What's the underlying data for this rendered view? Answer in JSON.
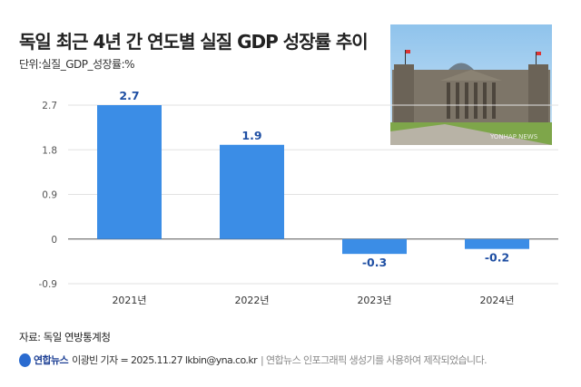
{
  "title": "독일 최근 4년 간 연도별 실질 GDP 성장률 추이",
  "unit": "단위:실질_GDP_성장률:%",
  "photo_watermark": "YONHAP NEWS",
  "source": "자료: 독일 연방통계청",
  "credit": {
    "logo_text": "연합뉴스",
    "byline": "이광빈 기자 = 2025.11.27 lkbin@yna.co.kr",
    "note": "| 연합뉴스 인포그래픽 생성기를 사용하여 제작되었습니다."
  },
  "chart_data": {
    "type": "bar",
    "title": "독일 최근 4년 간 연도별 실질 GDP 성장률 추이",
    "ylabel": "단위:실질_GDP_성장률:%",
    "categories": [
      "2021년",
      "2022년",
      "2023년",
      "2024년"
    ],
    "values": [
      2.7,
      1.9,
      -0.3,
      -0.2
    ],
    "data_labels": [
      "2.7",
      "1.9",
      "-0.3",
      "-0.2"
    ],
    "yticks": [
      2.7,
      1.8,
      0.9,
      0,
      -0.9
    ],
    "ytick_labels": [
      "2.7",
      "1.8",
      "0.9",
      "0",
      "-0.9"
    ],
    "ylim": [
      -0.9,
      2.7
    ],
    "grid": true,
    "bar_color": "#3b8de6",
    "label_color": "#1f4fa3"
  }
}
